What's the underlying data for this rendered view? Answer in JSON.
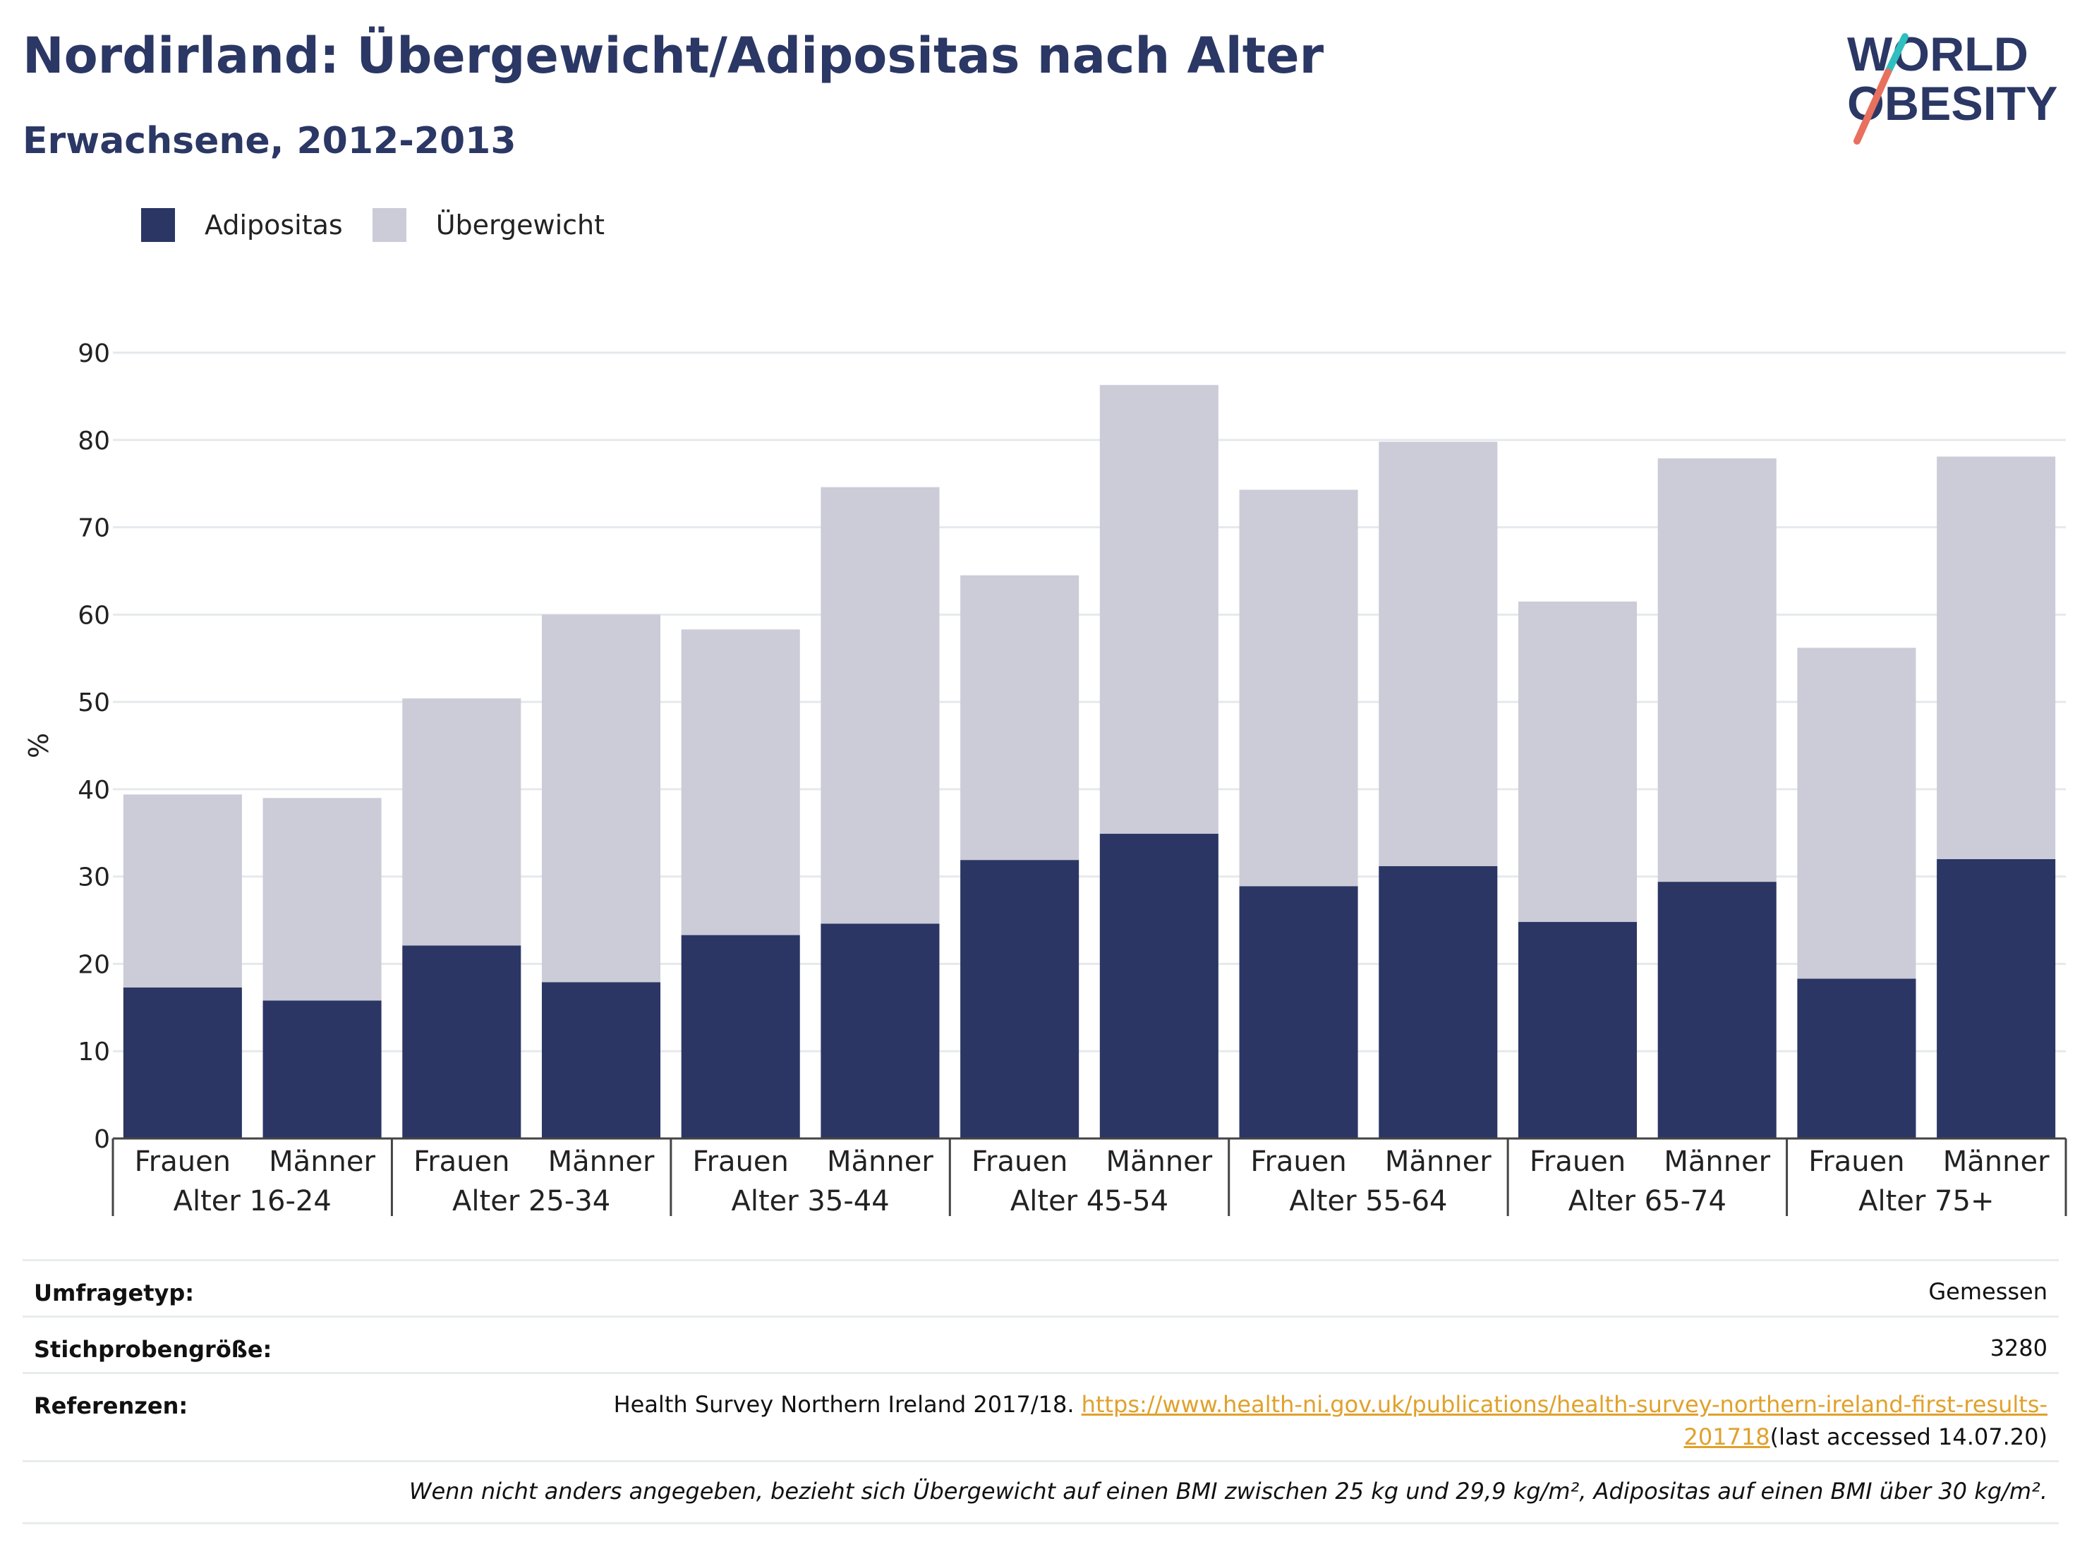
{
  "title": "Nordirland: Übergewicht/Adipositas nach Alter",
  "subtitle": "Erwachsene, 2012-2013",
  "logo": {
    "line1": "WORLD",
    "line2": "OBESITY"
  },
  "colors": {
    "adipositas": "#2b3664",
    "uebergewicht": "#cbccd8",
    "title": "#2b3764",
    "link": "#e0a12b",
    "logo_teal": "#2fbfbf",
    "logo_coral": "#e8705e"
  },
  "legend": [
    {
      "label": "Adipositas",
      "color": "#2b3664"
    },
    {
      "label": "Übergewicht",
      "color": "#cbccd8"
    }
  ],
  "chart_data": {
    "type": "bar",
    "stacked": true,
    "ylabel": "%",
    "ylim": [
      0,
      90
    ],
    "yticks": [
      0,
      10,
      20,
      30,
      40,
      50,
      60,
      70,
      80,
      90
    ],
    "grid": true,
    "groups": [
      "Alter 16-24",
      "Alter 25-34",
      "Alter 35-44",
      "Alter 45-54",
      "Alter 55-64",
      "Alter 65-74",
      "Alter 75+"
    ],
    "categories": [
      "Frauen",
      "Männer",
      "Frauen",
      "Männer",
      "Frauen",
      "Männer",
      "Frauen",
      "Männer",
      "Frauen",
      "Männer",
      "Frauen",
      "Männer",
      "Frauen",
      "Männer"
    ],
    "series": [
      {
        "name": "Adipositas",
        "values": [
          17.3,
          15.8,
          22.1,
          17.9,
          23.3,
          24.6,
          31.9,
          34.9,
          28.9,
          31.2,
          24.8,
          29.4,
          18.3,
          32.0
        ]
      },
      {
        "name": "Übergewicht",
        "values": [
          22.1,
          23.2,
          28.3,
          42.1,
          35.0,
          50.0,
          32.6,
          51.4,
          45.4,
          48.6,
          36.7,
          48.5,
          37.9,
          46.1
        ]
      }
    ]
  },
  "meta": {
    "survey_type_label": "Umfragetyp:",
    "survey_type_value": "Gemessen",
    "sample_label": "Stichprobengröße:",
    "sample_value": "3280",
    "references_label": "Referenzen:",
    "references_text": "Health Survey Northern Ireland 2017/18. ",
    "references_link_part1": "https://www.health-ni.gov.uk/publications/health-survey-northern-ireland-first-results-",
    "references_link_part2": "201718",
    "references_suffix": "(last accessed 14.07.20)",
    "footnote": "Wenn nicht anders angegeben, bezieht sich Übergewicht auf einen BMI zwischen 25 kg und 29,9 kg/m², Adipositas auf einen BMI über 30 kg/m²."
  }
}
